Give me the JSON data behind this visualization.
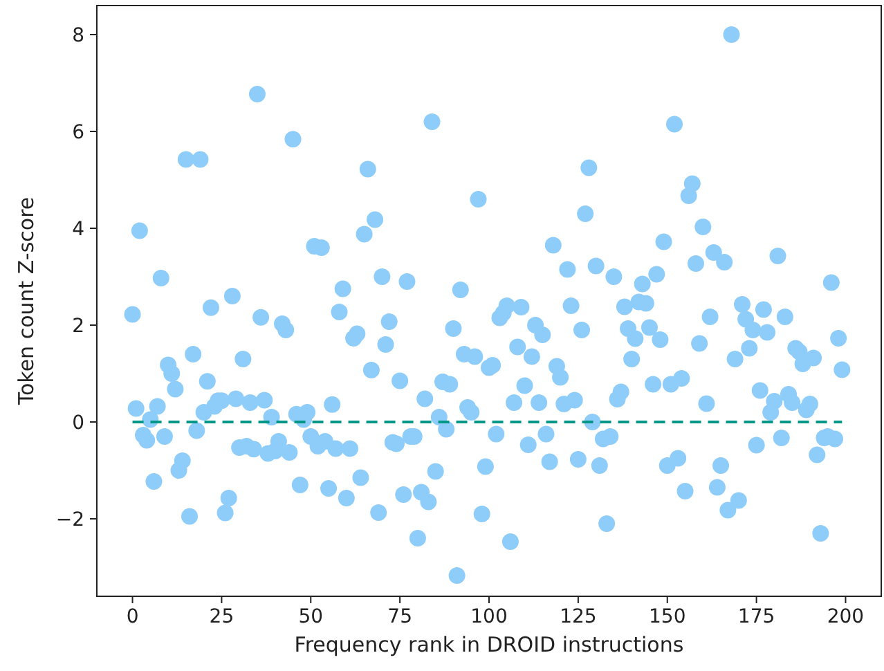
{
  "chart_data": {
    "type": "scatter",
    "xlabel": "Frequency rank in DROID instructions",
    "ylabel": "Token count Z-score",
    "xlim": [
      -10,
      210
    ],
    "ylim": [
      -3.6,
      8.6
    ],
    "xticks": [
      0,
      25,
      50,
      75,
      100,
      125,
      150,
      175,
      200
    ],
    "yticks": [
      -2,
      0,
      2,
      4,
      6,
      8
    ],
    "marker": "circle",
    "ref_lines": [
      {
        "axis": "y",
        "value": 0,
        "color": "#009688",
        "line_style": "dashed"
      }
    ],
    "series": [
      {
        "color": "#8ecdf9",
        "x": [
          0,
          1,
          2,
          3,
          4,
          5,
          6,
          7,
          8,
          9,
          10,
          11,
          12,
          13,
          14,
          15,
          16,
          17,
          18,
          19,
          20,
          21,
          22,
          23,
          24,
          25,
          26,
          27,
          28,
          29,
          30,
          31,
          32,
          33,
          34,
          35,
          36,
          37,
          38,
          39,
          40,
          41,
          42,
          43,
          44,
          45,
          46,
          47,
          48,
          49,
          50,
          51,
          52,
          53,
          54,
          55,
          56,
          57,
          58,
          59,
          60,
          61,
          62,
          63,
          64,
          65,
          66,
          67,
          68,
          69,
          70,
          71,
          72,
          73,
          74,
          75,
          76,
          77,
          78,
          79,
          80,
          81,
          82,
          83,
          84,
          85,
          86,
          87,
          88,
          89,
          90,
          91,
          92,
          93,
          94,
          95,
          96,
          97,
          98,
          99,
          100,
          101,
          102,
          103,
          104,
          105,
          106,
          107,
          108,
          109,
          110,
          111,
          112,
          113,
          114,
          115,
          116,
          117,
          118,
          119,
          120,
          121,
          122,
          123,
          124,
          125,
          126,
          127,
          128,
          129,
          130,
          131,
          132,
          133,
          134,
          135,
          136,
          137,
          138,
          139,
          140,
          141,
          142,
          143,
          144,
          145,
          146,
          147,
          148,
          149,
          150,
          151,
          152,
          153,
          154,
          155,
          156,
          157,
          158,
          159,
          160,
          161,
          162,
          163,
          164,
          165,
          166,
          167,
          168,
          169,
          170,
          171,
          172,
          173,
          174,
          175,
          176,
          177,
          178,
          179,
          180,
          181,
          182,
          183,
          184,
          185,
          186,
          187,
          188,
          189,
          190,
          191,
          192,
          193,
          194,
          195,
          196,
          197,
          198,
          199
        ],
        "values": [
          2.22,
          0.28,
          3.95,
          -0.27,
          -0.38,
          0.05,
          -1.23,
          0.32,
          2.97,
          -0.3,
          1.18,
          1.0,
          0.68,
          -1.0,
          -0.8,
          5.42,
          -1.95,
          1.4,
          -0.18,
          5.42,
          0.2,
          0.84,
          2.36,
          0.32,
          0.44,
          0.44,
          -1.88,
          -1.57,
          2.6,
          0.48,
          -0.53,
          1.3,
          -0.5,
          0.4,
          -0.56,
          6.77,
          2.16,
          0.45,
          -0.65,
          0.1,
          -0.6,
          -0.4,
          2.03,
          1.9,
          -0.63,
          5.84,
          0.16,
          -1.3,
          0.05,
          0.2,
          -0.3,
          3.63,
          -0.5,
          3.6,
          -0.4,
          -1.37,
          0.36,
          -0.55,
          2.27,
          2.75,
          -1.57,
          -0.55,
          1.73,
          1.82,
          -1.15,
          3.88,
          5.22,
          1.07,
          4.18,
          -1.87,
          3.0,
          1.6,
          2.07,
          -0.42,
          -0.45,
          0.85,
          -1.5,
          2.9,
          -0.3,
          -0.3,
          -2.4,
          -1.45,
          0.48,
          -1.65,
          6.2,
          -1.02,
          0.1,
          0.83,
          -0.15,
          0.78,
          1.93,
          -3.17,
          2.73,
          1.4,
          0.3,
          0.2,
          1.35,
          4.6,
          -1.9,
          -0.92,
          1.12,
          1.17,
          -0.25,
          2.15,
          2.25,
          2.4,
          -2.47,
          0.4,
          1.55,
          2.37,
          0.75,
          -0.47,
          1.35,
          2.0,
          0.4,
          1.8,
          -0.25,
          -0.82,
          3.65,
          1.15,
          0.92,
          0.37,
          3.15,
          2.4,
          0.45,
          -0.77,
          1.9,
          4.3,
          5.25,
          0.0,
          3.22,
          -0.9,
          -0.35,
          -2.1,
          -0.3,
          3.0,
          0.47,
          0.62,
          2.38,
          1.93,
          1.3,
          1.72,
          2.48,
          2.85,
          2.45,
          1.95,
          0.78,
          3.05,
          1.7,
          3.72,
          -0.9,
          0.78,
          6.15,
          -0.75,
          0.9,
          -1.43,
          4.67,
          4.92,
          3.27,
          1.62,
          4.03,
          0.38,
          2.17,
          3.5,
          -1.35,
          -0.9,
          3.3,
          -1.82,
          8.0,
          1.3,
          -1.62,
          2.43,
          2.12,
          1.52,
          1.9,
          -0.48,
          0.65,
          2.32,
          1.85,
          0.2,
          0.43,
          3.43,
          -0.33,
          2.17,
          0.57,
          0.4,
          1.52,
          1.45,
          1.2,
          0.25,
          0.37,
          1.32,
          -0.68,
          -2.3,
          -0.33,
          -0.3,
          2.88,
          -0.35,
          1.73,
          1.08
        ]
      }
    ]
  }
}
